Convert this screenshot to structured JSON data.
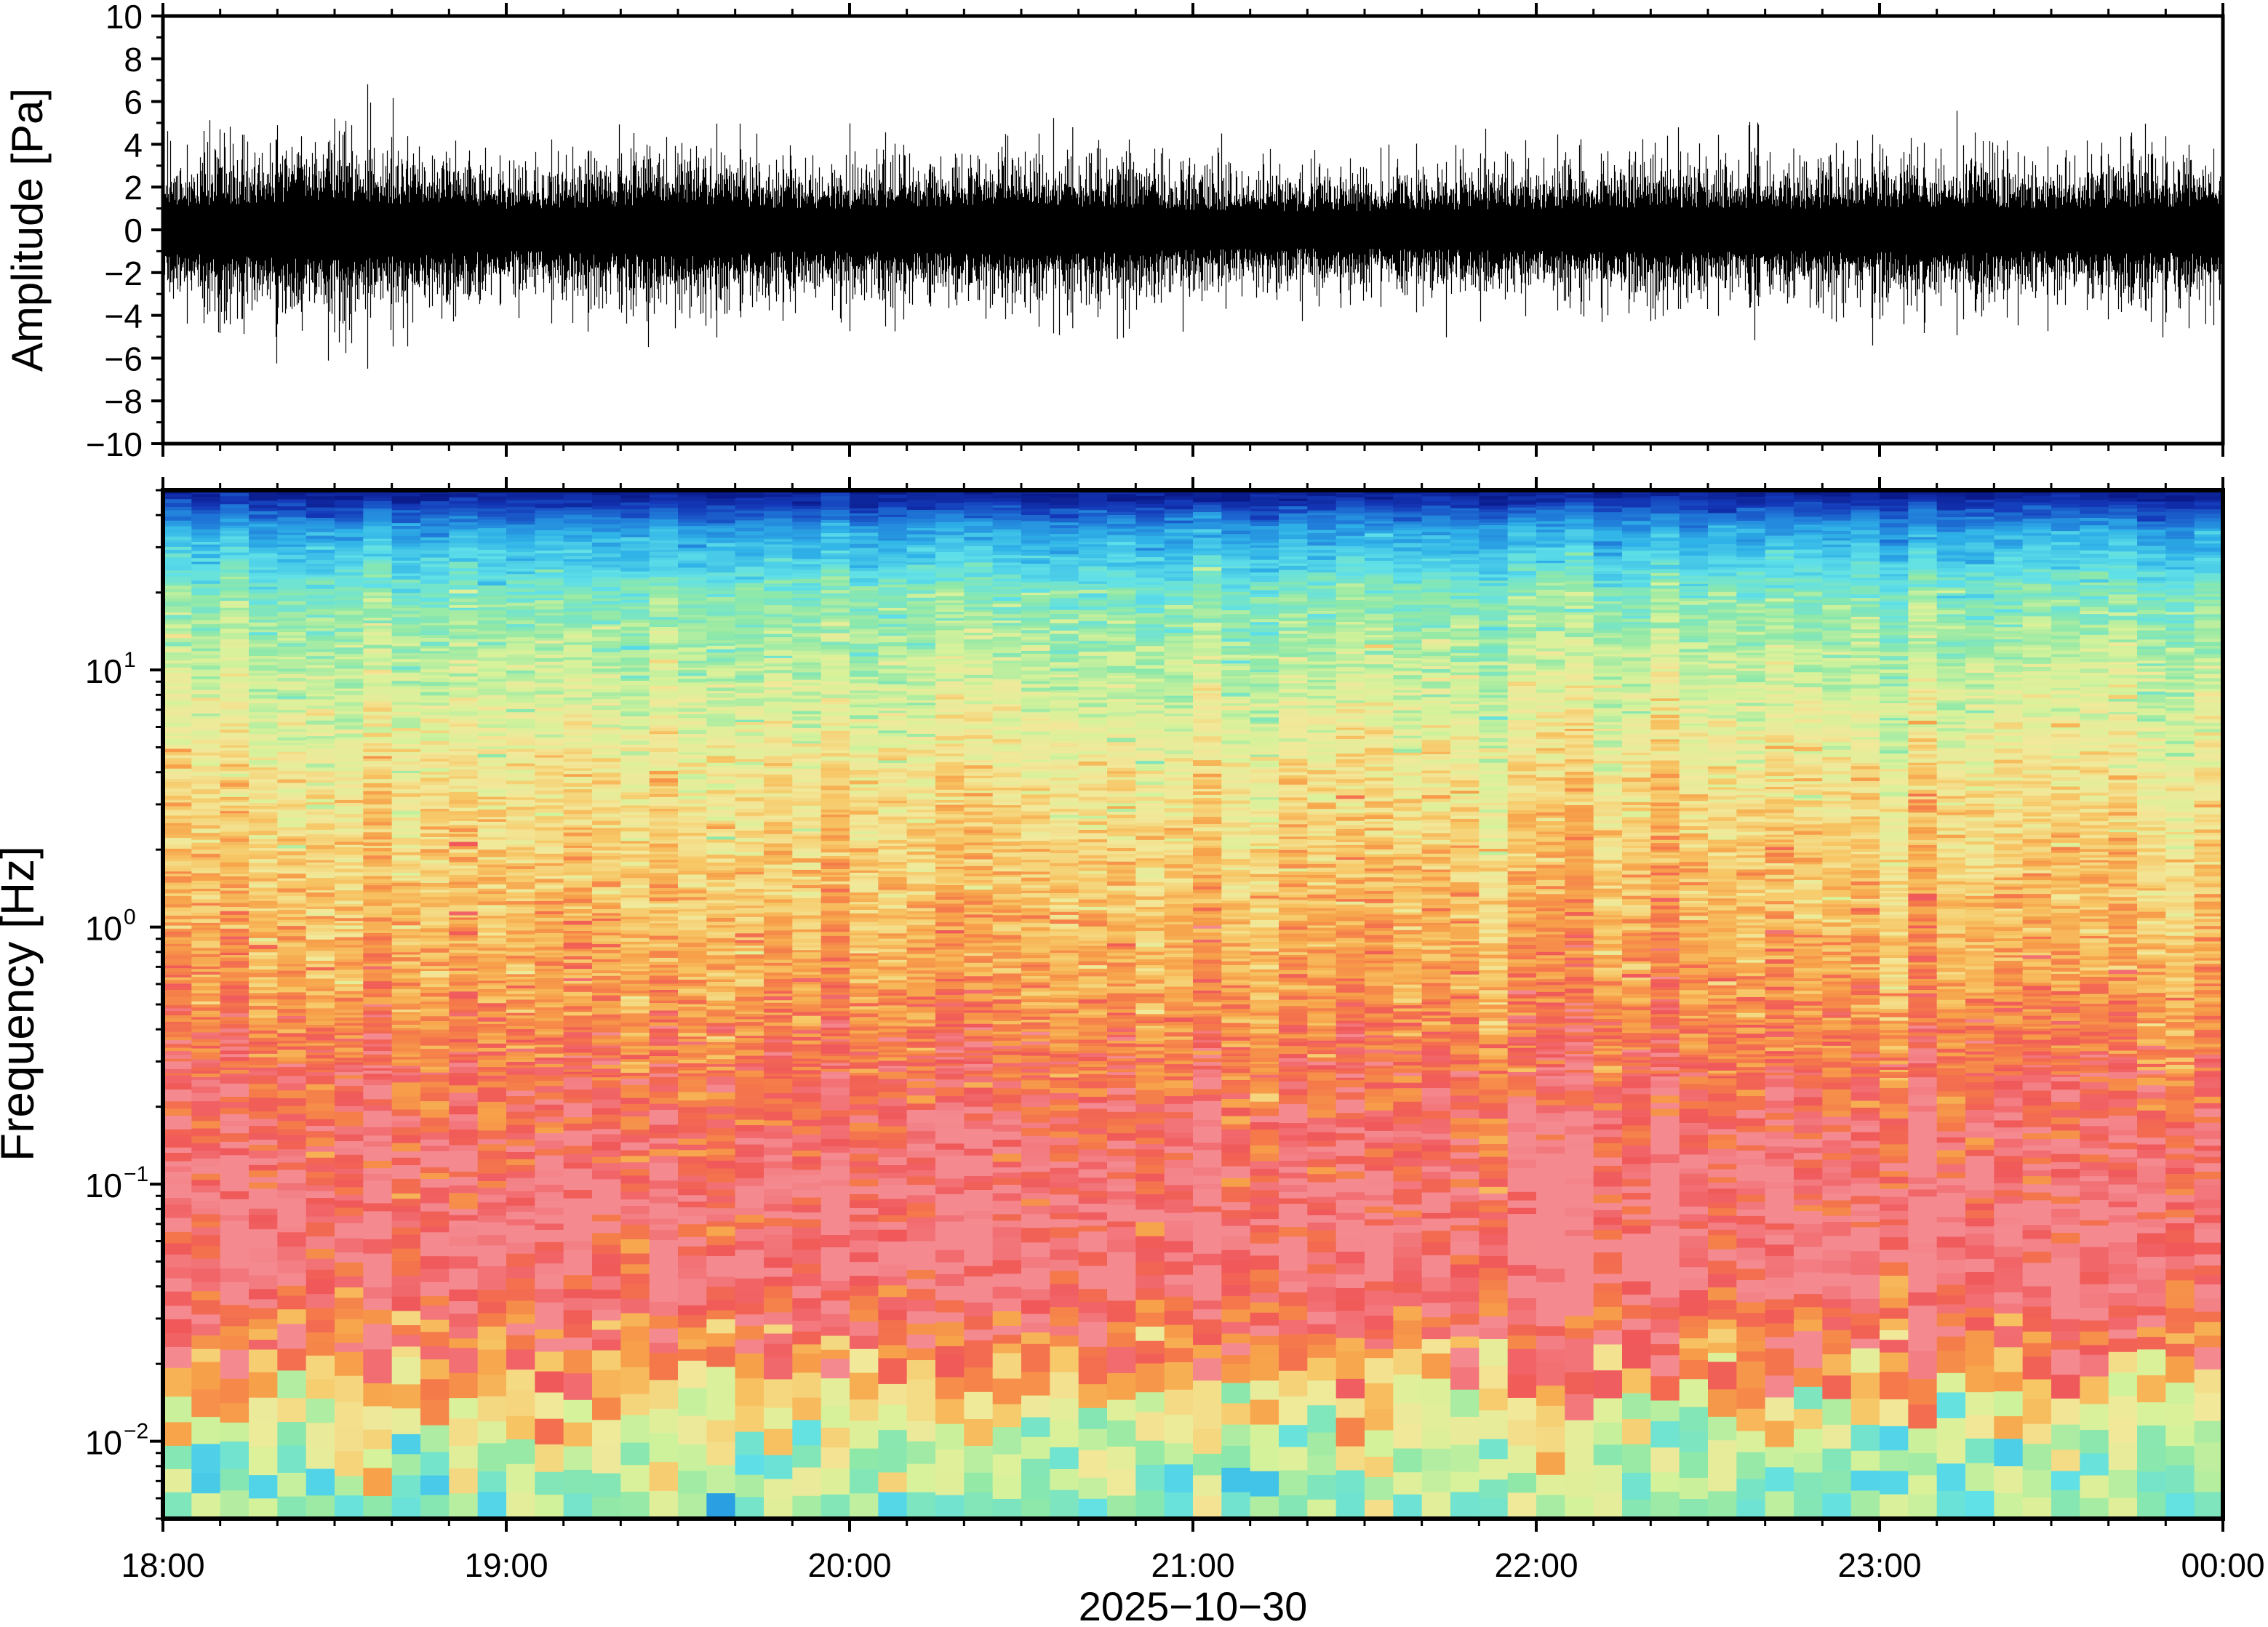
{
  "chart_data": [
    {
      "type": "line",
      "title": "",
      "xlabel": "",
      "ylabel": "Amplitude [Pa]",
      "ylim": [
        -10,
        10
      ],
      "y_ticks": [
        10,
        8,
        6,
        4,
        2,
        0,
        -2,
        -4,
        -6,
        -8,
        -10
      ],
      "y_tick_labels": [
        "10",
        "8",
        "6",
        "4",
        "2",
        "0",
        "−2",
        "−4",
        "−6",
        "−8",
        "−10"
      ],
      "xlim": [
        "18:00",
        "00:00"
      ],
      "grid": false,
      "legend": "none",
      "series": [
        {
          "color": "#000000",
          "envelope_times_h": [
            18.0,
            18.25,
            18.5,
            18.75,
            19.0,
            19.25,
            19.5,
            19.75,
            20.0,
            20.25,
            20.5,
            20.75,
            21.0,
            21.25,
            21.5,
            21.75,
            22.0,
            22.25,
            22.5,
            22.75,
            23.0,
            23.25,
            23.5,
            23.75,
            24.0
          ],
          "envelope_pa": [
            2.0,
            2.2,
            2.6,
            2.1,
            1.8,
            1.9,
            2.3,
            1.9,
            1.8,
            2.0,
            2.1,
            1.9,
            1.7,
            1.6,
            1.6,
            1.7,
            1.8,
            1.9,
            1.9,
            1.8,
            1.9,
            2.0,
            1.8,
            1.9,
            2.1
          ],
          "spikes": [
            {
              "t_h": 18.5,
              "max": 5.2,
              "min": -4.8
            },
            {
              "t_h": 19.5,
              "max": 3.6,
              "min": -3.0
            },
            {
              "t_h": 20.65,
              "max": 4.8,
              "min": -4.6
            },
            {
              "t_h": 20.78,
              "max": 3.0,
              "min": -5.1
            },
            {
              "t_h": 22.75,
              "max": 3.8,
              "min": -3.2
            },
            {
              "t_h": 23.0,
              "max": 3.2,
              "min": -3.4
            },
            {
              "t_h": 23.95,
              "max": 3.0,
              "min": -4.4
            }
          ]
        }
      ]
    },
    {
      "type": "heatmap",
      "title": "",
      "xlabel": "2025−10−30",
      "ylabel": "Frequency [Hz]",
      "y_scale": "log",
      "ylim_hz": [
        0.005,
        50
      ],
      "y_major_ticks_hz": [
        0.01,
        0.1,
        1,
        10
      ],
      "y_tick_base": "10",
      "y_tick_exponents": [
        "−2",
        "−1",
        "0",
        "1"
      ],
      "xlim": [
        "18:00",
        "00:00"
      ],
      "x_tick_labels": [
        "18:00",
        "19:00",
        "20:00",
        "21:00",
        "22:00",
        "23:00",
        "00:00"
      ],
      "colormap": [
        "#5fe0e8",
        "#8ee8a8",
        "#d6f29a",
        "#f2e89a",
        "#f7c766",
        "#f7a24a",
        "#f57a4a",
        "#f0585a",
        "#f48a90"
      ],
      "color_stops_level": [
        0.0,
        0.2,
        0.35,
        0.5,
        0.62,
        0.72,
        0.82,
        0.9,
        1.0
      ],
      "top_colormap": [
        "#5fe0e8",
        "#2fb2e8",
        "#1f78d8",
        "#1438b8",
        "#0a1a8a"
      ],
      "freq_profile": [
        {
          "f_hz": 0.006,
          "level": 0.18
        },
        {
          "f_hz": 0.01,
          "level": 0.32
        },
        {
          "f_hz": 0.02,
          "level": 0.78
        },
        {
          "f_hz": 0.04,
          "level": 0.95
        },
        {
          "f_hz": 0.08,
          "level": 0.97
        },
        {
          "f_hz": 0.15,
          "level": 0.92
        },
        {
          "f_hz": 0.3,
          "level": 0.84
        },
        {
          "f_hz": 0.6,
          "level": 0.72
        },
        {
          "f_hz": 1.5,
          "level": 0.62
        },
        {
          "f_hz": 4,
          "level": 0.5
        },
        {
          "f_hz": 10,
          "level": 0.32
        },
        {
          "f_hz": 20,
          "level": 0.14
        },
        {
          "f_hz": 35,
          "level": -0.3
        },
        {
          "f_hz": 50,
          "level": -1.0
        }
      ]
    }
  ]
}
